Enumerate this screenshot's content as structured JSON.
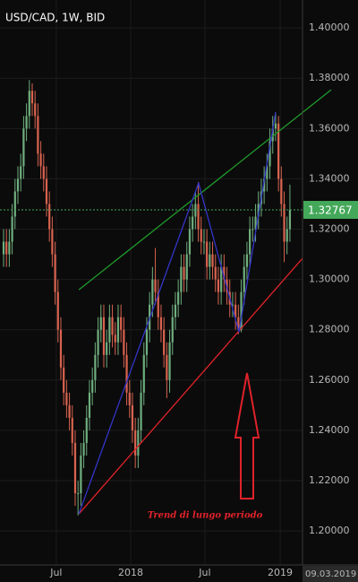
{
  "chart_data": {
    "type": "candlestick",
    "title": "USD/CAD, 1W, BID",
    "categories": [
      null,
      null,
      null,
      null,
      null,
      null,
      null,
      null,
      null,
      null,
      null,
      null,
      null,
      null,
      null,
      null,
      null,
      null,
      null,
      null,
      null,
      null,
      null,
      null,
      null,
      null,
      null,
      null,
      null,
      null,
      null,
      null,
      null,
      null,
      null,
      null,
      null,
      null,
      null,
      null,
      null,
      null,
      null,
      null,
      null,
      null,
      null,
      null,
      null,
      null,
      null,
      null,
      null,
      null,
      null,
      null,
      null,
      null,
      null,
      null,
      null,
      null,
      null,
      null,
      null,
      null,
      null,
      null,
      null,
      null,
      null,
      null,
      null,
      null,
      null,
      null,
      null,
      null,
      null,
      null,
      null,
      null,
      null,
      null,
      null,
      null,
      null,
      null,
      null,
      null,
      null,
      null,
      null,
      null,
      null,
      null,
      null,
      null,
      null,
      null,
      null
    ],
    "open": [
      1.31,
      1.315,
      1.31,
      1.315,
      1.325,
      1.335,
      1.34,
      1.345,
      1.36,
      1.365,
      1.375,
      1.37,
      1.365,
      1.35,
      1.345,
      1.34,
      1.33,
      1.32,
      1.31,
      1.295,
      1.28,
      1.265,
      1.255,
      1.25,
      1.245,
      1.235,
      1.215,
      1.215,
      1.23,
      1.235,
      1.245,
      1.255,
      1.26,
      1.27,
      1.28,
      1.285,
      1.27,
      1.275,
      1.285,
      1.278,
      1.275,
      1.285,
      1.28,
      1.27,
      1.255,
      1.25,
      1.24,
      1.23,
      1.24,
      1.255,
      1.27,
      1.28,
      1.29,
      1.3,
      1.295,
      1.285,
      1.28,
      1.27,
      1.26,
      1.275,
      1.285,
      1.29,
      1.295,
      1.305,
      1.3,
      1.31,
      1.32,
      1.325,
      1.33,
      1.32,
      1.315,
      1.315,
      1.305,
      1.31,
      1.305,
      1.3,
      1.295,
      1.305,
      1.3,
      1.295,
      1.29,
      1.29,
      1.285,
      1.28,
      1.295,
      1.305,
      1.31,
      1.32,
      1.32,
      1.325,
      1.33,
      1.335,
      1.34,
      1.345,
      1.355,
      1.36,
      1.362,
      1.34,
      1.33,
      1.315,
      1.32
    ],
    "high": [
      1.32,
      1.32,
      1.32,
      1.33,
      1.34,
      1.345,
      1.35,
      1.365,
      1.37,
      1.3793,
      1.378,
      1.375,
      1.37,
      1.355,
      1.35,
      1.345,
      1.335,
      1.325,
      1.315,
      1.3,
      1.285,
      1.27,
      1.26,
      1.255,
      1.25,
      1.24,
      1.22,
      1.235,
      1.24,
      1.25,
      1.26,
      1.265,
      1.275,
      1.285,
      1.29,
      1.29,
      1.28,
      1.29,
      1.29,
      1.283,
      1.29,
      1.29,
      1.285,
      1.275,
      1.26,
      1.255,
      1.245,
      1.245,
      1.26,
      1.275,
      1.285,
      1.295,
      1.305,
      1.3125,
      1.3,
      1.29,
      1.285,
      1.275,
      1.28,
      1.29,
      1.295,
      1.3,
      1.31,
      1.31,
      1.315,
      1.325,
      1.33,
      1.335,
      1.3386,
      1.325,
      1.32,
      1.32,
      1.315,
      1.315,
      1.31,
      1.305,
      1.31,
      1.31,
      1.305,
      1.3,
      1.295,
      1.295,
      1.29,
      1.3,
      1.31,
      1.315,
      1.325,
      1.325,
      1.33,
      1.335,
      1.34,
      1.345,
      1.35,
      1.36,
      1.365,
      1.3665,
      1.365,
      1.345,
      1.335,
      1.325,
      1.3377
    ],
    "low": [
      1.305,
      1.305,
      1.305,
      1.31,
      1.32,
      1.33,
      1.335,
      1.34,
      1.355,
      1.36,
      1.365,
      1.36,
      1.345,
      1.34,
      1.335,
      1.325,
      1.315,
      1.305,
      1.29,
      1.275,
      1.26,
      1.25,
      1.245,
      1.24,
      1.23,
      1.21,
      1.2062,
      1.21,
      1.225,
      1.23,
      1.24,
      1.25,
      1.255,
      1.265,
      1.275,
      1.265,
      1.265,
      1.27,
      1.273,
      1.27,
      1.27,
      1.275,
      1.265,
      1.25,
      1.245,
      1.235,
      1.225,
      1.225,
      1.235,
      1.25,
      1.265,
      1.275,
      1.285,
      1.29,
      1.28,
      1.275,
      1.265,
      1.2528,
      1.255,
      1.27,
      1.28,
      1.285,
      1.29,
      1.295,
      1.295,
      1.305,
      1.315,
      1.32,
      1.315,
      1.31,
      1.31,
      1.3,
      1.3,
      1.3,
      1.295,
      1.29,
      1.29,
      1.295,
      1.29,
      1.285,
      1.285,
      1.28,
      1.2782,
      1.279,
      1.29,
      1.3,
      1.305,
      1.315,
      1.315,
      1.32,
      1.325,
      1.33,
      1.335,
      1.34,
      1.35,
      1.355,
      1.335,
      1.325,
      1.3069,
      1.31,
      1.315
    ],
    "close": [
      1.315,
      1.31,
      1.315,
      1.325,
      1.335,
      1.34,
      1.345,
      1.36,
      1.365,
      1.375,
      1.37,
      1.365,
      1.35,
      1.345,
      1.34,
      1.33,
      1.32,
      1.31,
      1.295,
      1.28,
      1.265,
      1.255,
      1.25,
      1.245,
      1.235,
      1.215,
      1.215,
      1.23,
      1.235,
      1.245,
      1.255,
      1.26,
      1.27,
      1.28,
      1.285,
      1.27,
      1.275,
      1.285,
      1.278,
      1.275,
      1.285,
      1.28,
      1.27,
      1.255,
      1.25,
      1.24,
      1.23,
      1.24,
      1.255,
      1.27,
      1.28,
      1.29,
      1.3,
      1.295,
      1.285,
      1.28,
      1.27,
      1.26,
      1.275,
      1.285,
      1.29,
      1.295,
      1.305,
      1.3,
      1.31,
      1.32,
      1.325,
      1.33,
      1.32,
      1.315,
      1.315,
      1.305,
      1.31,
      1.305,
      1.3,
      1.295,
      1.305,
      1.3,
      1.295,
      1.29,
      1.29,
      1.285,
      1.28,
      1.295,
      1.305,
      1.31,
      1.32,
      1.32,
      1.325,
      1.33,
      1.335,
      1.34,
      1.345,
      1.355,
      1.36,
      1.362,
      1.34,
      1.33,
      1.315,
      1.32,
      1.32767
    ],
    "up_color": "#6fae7e",
    "down_color": "#d9634f",
    "xlim": [
      -1.25,
      104.4
    ],
    "ylim": [
      1.1865,
      1.4111
    ],
    "xticks": [
      {
        "value": 18.4,
        "label": "Jul"
      },
      {
        "value": 44.4,
        "label": "2018"
      },
      {
        "value": 70.3,
        "label": "Jul"
      },
      {
        "value": 96.6,
        "label": "2019"
      }
    ],
    "yticks": [
      {
        "value": 1.4,
        "label": "1.40000"
      },
      {
        "value": 1.38,
        "label": "1.38000"
      },
      {
        "value": 1.36,
        "label": "1.36000"
      },
      {
        "value": 1.34,
        "label": "1.34000"
      },
      {
        "value": 1.32,
        "label": "1.32000"
      },
      {
        "value": 1.3,
        "label": "1.30000"
      },
      {
        "value": 1.28,
        "label": "1.28000"
      },
      {
        "value": 1.26,
        "label": "1.26000"
      },
      {
        "value": 1.24,
        "label": "1.24000"
      },
      {
        "value": 1.22,
        "label": "1.22000"
      },
      {
        "value": 1.2,
        "label": "1.20000"
      }
    ],
    "grid": true,
    "last_price": 1.32767,
    "last_price_color": "#43a859",
    "cursor_date": "09.03.2019",
    "trendlines": [
      {
        "color": "#1f9a2a",
        "points": [
          [
            26.3,
            1.2959
          ],
          [
            114.4,
            1.3754
          ]
        ]
      },
      {
        "color": "#e0222a",
        "points": [
          [
            26.3,
            1.2068
          ],
          [
            104.4,
            1.3084
          ]
        ]
      },
      {
        "color": "#3434c8",
        "points": [
          [
            26.3,
            1.2068
          ],
          [
            68.1,
            1.3383
          ],
          [
            82.2,
            1.2791
          ],
          [
            95.0,
            1.3665
          ]
        ]
      }
    ],
    "annotation": "Trend di lungo periodo"
  }
}
